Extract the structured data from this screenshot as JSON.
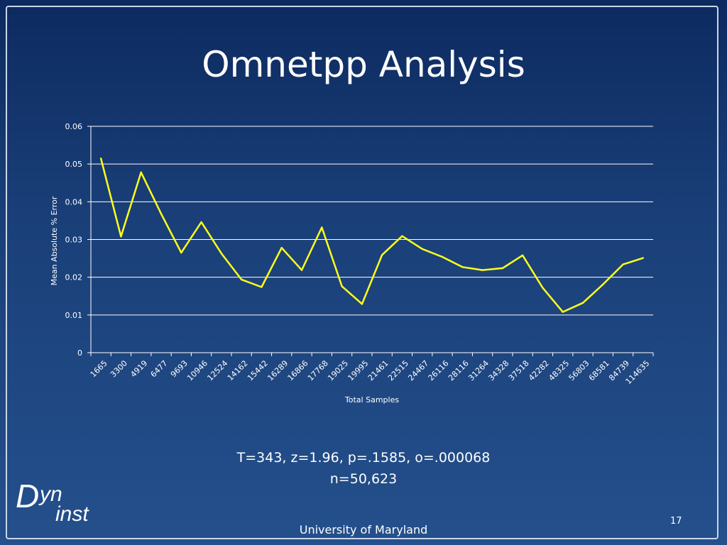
{
  "slide": {
    "title": "Omnetpp Analysis",
    "stats_line1": "T=343, z=1.96, p=.1585, o=.000068",
    "stats_line2": "n=50,623",
    "logo_big": "D",
    "logo_yn": "yn",
    "logo_inst": "inst",
    "page_number": "17",
    "footer": "University of Maryland"
  },
  "chart_data": {
    "type": "line",
    "title": "",
    "xlabel": "Total Samples",
    "ylabel": "Mean Absolute % Error",
    "ylim": [
      0,
      0.06
    ],
    "yticks": [
      "0",
      "0.01",
      "0.02",
      "0.03",
      "0.04",
      "0.05",
      "0.06"
    ],
    "grid": true,
    "legend": "none",
    "line_color": "#ffff1a",
    "categories": [
      "1665",
      "3300",
      "4919",
      "6477",
      "9693",
      "10946",
      "12524",
      "14162",
      "15442",
      "16289",
      "16866",
      "17768",
      "19025",
      "19995",
      "21461",
      "22515",
      "24467",
      "26116",
      "28116",
      "31264",
      "34328",
      "37518",
      "42282",
      "48325",
      "56803",
      "68581",
      "84739",
      "114635"
    ],
    "values": [
      0.0515,
      0.0308,
      0.0478,
      0.0368,
      0.0265,
      0.0346,
      0.0263,
      0.0194,
      0.0174,
      0.0278,
      0.0219,
      0.0332,
      0.0176,
      0.0129,
      0.0259,
      0.0309,
      0.0275,
      0.0254,
      0.0227,
      0.0219,
      0.0224,
      0.0258,
      0.0172,
      0.0108,
      0.0132,
      0.0181,
      0.0234,
      0.0251
    ]
  }
}
